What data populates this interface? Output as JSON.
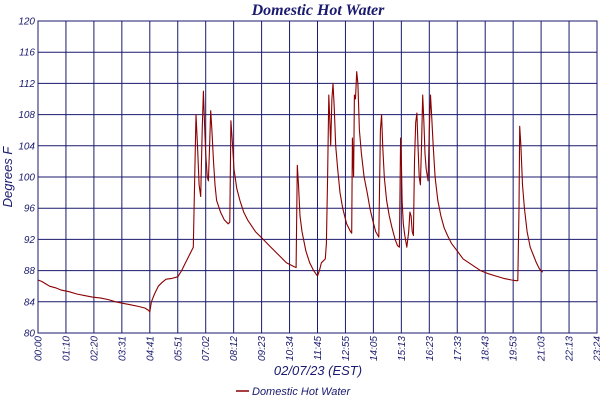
{
  "chart_data": {
    "type": "line",
    "title": "Domestic Hot Water",
    "xlabel": "02/07/23 (EST)",
    "ylabel": "Degrees F",
    "ylim": [
      80,
      120
    ],
    "yticks": [
      80,
      84,
      88,
      92,
      96,
      100,
      104,
      108,
      112,
      116,
      120
    ],
    "xlim": [
      0,
      1440
    ],
    "xtick_labels": [
      "00:00",
      "01:10",
      "02:20",
      "03:31",
      "04:41",
      "05:51",
      "07:02",
      "08:12",
      "09:23",
      "10:34",
      "11:45",
      "12:55",
      "14:05",
      "15:13",
      "16:23",
      "17:33",
      "18:43",
      "19:53",
      "21:03",
      "22:13",
      "23:24"
    ],
    "grid": true,
    "legend_position": "bottom-center",
    "series": [
      {
        "name": "Domestic Hot Water",
        "color": "#8b0000",
        "points": [
          [
            0,
            86.8
          ],
          [
            10,
            86.6
          ],
          [
            20,
            86.3
          ],
          [
            30,
            86.0
          ],
          [
            45,
            85.8
          ],
          [
            60,
            85.5
          ],
          [
            80,
            85.3
          ],
          [
            100,
            85.0
          ],
          [
            120,
            84.8
          ],
          [
            140,
            84.6
          ],
          [
            160,
            84.5
          ],
          [
            180,
            84.3
          ],
          [
            200,
            84.0
          ],
          [
            220,
            83.8
          ],
          [
            240,
            83.6
          ],
          [
            260,
            83.4
          ],
          [
            275,
            83.2
          ],
          [
            285,
            82.9
          ],
          [
            288,
            82.7
          ],
          [
            292,
            84.0
          ],
          [
            300,
            85.0
          ],
          [
            310,
            86.0
          ],
          [
            320,
            86.5
          ],
          [
            330,
            86.9
          ],
          [
            345,
            87.0
          ],
          [
            360,
            87.2
          ],
          [
            370,
            88.0
          ],
          [
            380,
            89.0
          ],
          [
            390,
            90.0
          ],
          [
            400,
            91.0
          ],
          [
            403,
            98.0
          ],
          [
            407,
            108.0
          ],
          [
            411,
            104.0
          ],
          [
            415,
            99.0
          ],
          [
            419,
            97.5
          ],
          [
            423,
            106.0
          ],
          [
            426,
            111.0
          ],
          [
            429,
            107.0
          ],
          [
            432,
            103.0
          ],
          [
            436,
            100.0
          ],
          [
            439,
            99.5
          ],
          [
            442,
            104.0
          ],
          [
            445,
            108.5
          ],
          [
            448,
            106.0
          ],
          [
            452,
            102.0
          ],
          [
            456,
            99.0
          ],
          [
            460,
            97.0
          ],
          [
            470,
            95.5
          ],
          [
            480,
            94.5
          ],
          [
            490,
            94.0
          ],
          [
            494,
            94.2
          ],
          [
            497,
            107.2
          ],
          [
            500,
            105.0
          ],
          [
            505,
            101.0
          ],
          [
            512,
            98.5
          ],
          [
            520,
            97.0
          ],
          [
            530,
            95.5
          ],
          [
            540,
            94.5
          ],
          [
            560,
            93.0
          ],
          [
            580,
            92.0
          ],
          [
            600,
            91.0
          ],
          [
            620,
            90.0
          ],
          [
            640,
            89.0
          ],
          [
            660,
            88.5
          ],
          [
            665,
            88.4
          ],
          [
            668,
            101.5
          ],
          [
            671,
            99.0
          ],
          [
            675,
            95.0
          ],
          [
            680,
            93.0
          ],
          [
            690,
            90.5
          ],
          [
            700,
            89.0
          ],
          [
            710,
            88.0
          ],
          [
            720,
            87.3
          ],
          [
            725,
            88.0
          ],
          [
            730,
            89.0
          ],
          [
            740,
            89.5
          ],
          [
            743,
            91.5
          ],
          [
            746,
            100.0
          ],
          [
            749,
            110.5
          ],
          [
            752,
            107.0
          ],
          [
            754,
            104.0
          ],
          [
            757,
            110.0
          ],
          [
            760,
            112.0
          ],
          [
            763,
            109.0
          ],
          [
            767,
            104.0
          ],
          [
            772,
            101.0
          ],
          [
            778,
            98.0
          ],
          [
            785,
            96.0
          ],
          [
            795,
            94.0
          ],
          [
            805,
            93.0
          ],
          [
            808,
            92.8
          ],
          [
            810,
            105.0
          ],
          [
            813,
            100.0
          ],
          [
            815,
            110.5
          ],
          [
            818,
            110.0
          ],
          [
            821,
            113.5
          ],
          [
            824,
            112.0
          ],
          [
            828,
            106.0
          ],
          [
            833,
            103.0
          ],
          [
            840,
            100.0
          ],
          [
            848,
            98.0
          ],
          [
            855,
            96.0
          ],
          [
            862,
            94.5
          ],
          [
            870,
            93.0
          ],
          [
            878,
            92.3
          ],
          [
            882,
            106.0
          ],
          [
            885,
            108.0
          ],
          [
            888,
            104.0
          ],
          [
            892,
            100.0
          ],
          [
            898,
            97.0
          ],
          [
            905,
            95.0
          ],
          [
            912,
            93.5
          ],
          [
            920,
            92.0
          ],
          [
            926,
            91.2
          ],
          [
            931,
            91.0
          ],
          [
            934,
            105.0
          ],
          [
            936,
            102.0
          ],
          [
            938,
            97.0
          ],
          [
            941,
            94.0
          ],
          [
            945,
            92.5
          ],
          [
            950,
            91.0
          ],
          [
            955,
            93.0
          ],
          [
            958,
            95.5
          ],
          [
            961,
            95.0
          ],
          [
            964,
            93.0
          ],
          [
            967,
            92.5
          ],
          [
            970,
            102.0
          ],
          [
            973,
            107.0
          ],
          [
            976,
            108.2
          ],
          [
            979,
            104.0
          ],
          [
            982,
            100.0
          ],
          [
            985,
            99.0
          ],
          [
            988,
            104.0
          ],
          [
            991,
            110.5
          ],
          [
            994,
            107.0
          ],
          [
            997,
            103.0
          ],
          [
            1000,
            101.0
          ],
          [
            1005,
            99.5
          ],
          [
            1008,
            106.0
          ],
          [
            1011,
            110.5
          ],
          [
            1014,
            108.0
          ],
          [
            1018,
            104.0
          ],
          [
            1023,
            100.0
          ],
          [
            1030,
            97.0
          ],
          [
            1038,
            95.0
          ],
          [
            1046,
            93.5
          ],
          [
            1055,
            92.5
          ],
          [
            1065,
            91.5
          ],
          [
            1080,
            90.5
          ],
          [
            1095,
            89.5
          ],
          [
            1110,
            89.0
          ],
          [
            1125,
            88.5
          ],
          [
            1140,
            88.0
          ],
          [
            1160,
            87.6
          ],
          [
            1180,
            87.3
          ],
          [
            1200,
            87.0
          ],
          [
            1220,
            86.8
          ],
          [
            1232,
            86.7
          ],
          [
            1236,
            86.7
          ],
          [
            1239,
            96.0
          ],
          [
            1241,
            106.5
          ],
          [
            1244,
            104.0
          ],
          [
            1248,
            99.0
          ],
          [
            1253,
            96.0
          ],
          [
            1260,
            93.0
          ],
          [
            1268,
            91.0
          ],
          [
            1276,
            90.0
          ],
          [
            1284,
            89.0
          ],
          [
            1292,
            88.2
          ],
          [
            1300,
            87.8
          ]
        ]
      }
    ]
  }
}
